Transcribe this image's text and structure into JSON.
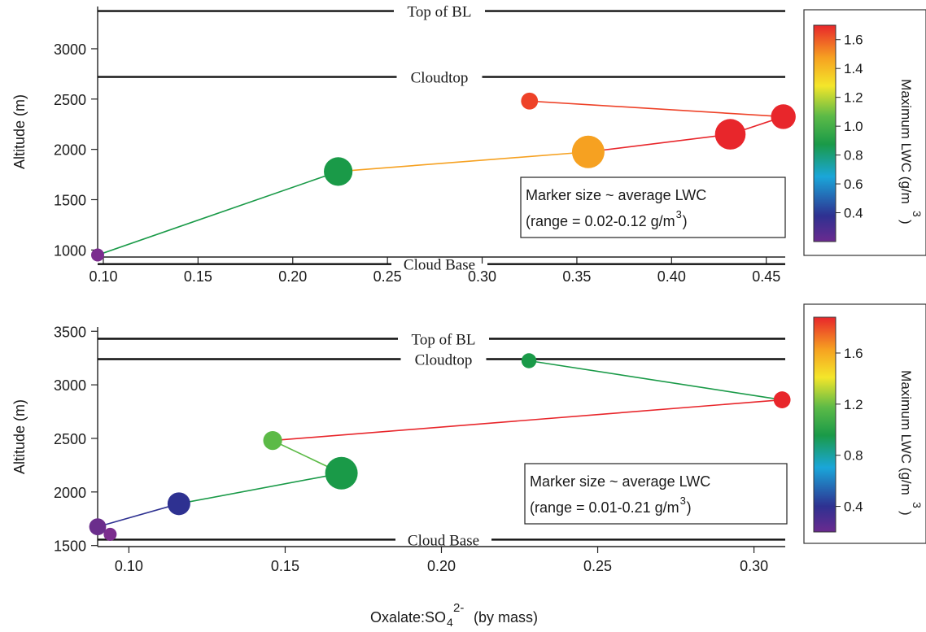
{
  "figure": {
    "xlabel_main": "Oxalate:SO",
    "xlabel_sub": "4",
    "xlabel_sup": "2-",
    "xlabel_tail": "(by mass)",
    "colorbar_label": "Maximum LWC (g/m",
    "colorbar_label_sup": "3",
    "colorbar_label_close": ")"
  },
  "chart_data": [
    {
      "type": "scatter",
      "title": "",
      "xlabel": "Oxalate:SO42- (by mass)",
      "ylabel": "Altitude (m)",
      "xlim": [
        0.097,
        0.46
      ],
      "ylim": [
        930,
        3420
      ],
      "xticks": [
        "0.10",
        "0.15",
        "0.20",
        "0.25",
        "0.30",
        "0.35",
        "0.40",
        "0.45"
      ],
      "yticks": [
        "1000",
        "1500",
        "2000",
        "2500",
        "3000"
      ],
      "connected": true,
      "marker_size_meaning": "average LWC",
      "color_meaning": "Maximum LWC (g/m3)",
      "points": [
        {
          "x": 0.097,
          "y": 950,
          "max_lwc": 0.1,
          "avg_lwc": 0.02,
          "color": "#7b2d8e"
        },
        {
          "x": 0.224,
          "y": 1780,
          "max_lwc": 1.0,
          "avg_lwc": 0.1,
          "color": "#1a9a48"
        },
        {
          "x": 0.356,
          "y": 1975,
          "max_lwc": 1.48,
          "avg_lwc": 0.12,
          "color": "#f6a121"
        },
        {
          "x": 0.431,
          "y": 2150,
          "max_lwc": 1.65,
          "avg_lwc": 0.11,
          "color": "#e8262b"
        },
        {
          "x": 0.459,
          "y": 2325,
          "max_lwc": 1.65,
          "avg_lwc": 0.08,
          "color": "#e8262b"
        },
        {
          "x": 0.325,
          "y": 2480,
          "max_lwc": 1.6,
          "avg_lwc": 0.04,
          "color": "#ee4228"
        }
      ],
      "reference_lines": [
        {
          "label": "Top of BL",
          "y": 3375
        },
        {
          "label": "Cloudtop",
          "y": 2720
        },
        {
          "label": "Cloud Base",
          "y": 860
        }
      ],
      "legend_box": {
        "line1": "Marker size ~ average LWC",
        "line2": "(range = 0.02-0.12 g/m",
        "line2_sup": "3",
        "line2_close": ")"
      },
      "colorbar": {
        "ticks": [
          "1.6",
          "1.4",
          "1.2",
          "1.0",
          "0.8",
          "0.6",
          "0.4"
        ],
        "range": [
          0.2,
          1.7
        ],
        "label": "Maximum LWC (g/m3)"
      }
    },
    {
      "type": "scatter",
      "title": "",
      "xlabel": "Oxalate:SO42- (by mass)",
      "ylabel": "Altitude (m)",
      "xlim": [
        0.09,
        0.31
      ],
      "ylim": [
        1490,
        3540
      ],
      "xticks": [
        "0.10",
        "0.15",
        "0.20",
        "0.25",
        "0.30"
      ],
      "yticks": [
        "1500",
        "2000",
        "2500",
        "3000",
        "3500"
      ],
      "connected": true,
      "marker_size_meaning": "average LWC",
      "color_meaning": "Maximum LWC (g/m3)",
      "points": [
        {
          "x": 0.094,
          "y": 1605,
          "max_lwc": 0.2,
          "avg_lwc": 0.01,
          "color": "#7b2d8e"
        },
        {
          "x": 0.09,
          "y": 1675,
          "max_lwc": 0.25,
          "avg_lwc": 0.05,
          "color": "#6b2e8c"
        },
        {
          "x": 0.116,
          "y": 1890,
          "max_lwc": 0.4,
          "avg_lwc": 0.11,
          "color": "#2e3191"
        },
        {
          "x": 0.168,
          "y": 2175,
          "max_lwc": 1.1,
          "avg_lwc": 0.21,
          "color": "#1a9a48"
        },
        {
          "x": 0.146,
          "y": 2480,
          "max_lwc": 1.35,
          "avg_lwc": 0.07,
          "color": "#5cba47"
        },
        {
          "x": 0.309,
          "y": 2860,
          "max_lwc": 1.85,
          "avg_lwc": 0.05,
          "color": "#e8262b"
        },
        {
          "x": 0.228,
          "y": 3225,
          "max_lwc": 1.1,
          "avg_lwc": 0.03,
          "color": "#1a9a48"
        }
      ],
      "reference_lines": [
        {
          "label": "Top of BL",
          "y": 3430
        },
        {
          "label": "Cloudtop",
          "y": 3240
        },
        {
          "label": "Cloud Base",
          "y": 1555
        }
      ],
      "legend_box": {
        "line1": "Marker size ~ average LWC",
        "line2": "(range = 0.01-0.21 g/m",
        "line2_sup": "3",
        "line2_close": ")"
      },
      "colorbar": {
        "ticks": [
          "1.6",
          "1.2",
          "0.8",
          "0.4"
        ],
        "range": [
          0.2,
          1.88
        ],
        "label": "Maximum LWC (g/m3)"
      }
    }
  ]
}
